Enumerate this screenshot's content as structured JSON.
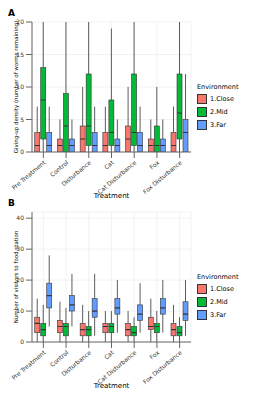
{
  "chart_data": [
    {
      "type": "boxplot",
      "label": "A",
      "x_label": "Treatment",
      "y_label": "Giving-up density (number of worms remaining)",
      "categories": [
        "Pre Treatment",
        "Control",
        "Disturbance",
        "Cat",
        "Cat Disturbance",
        "Fox",
        "Fox Disturbance"
      ],
      "ylim": [
        0,
        20
      ],
      "yticks": [
        0,
        5,
        10,
        15,
        20
      ],
      "grid": true,
      "legend": "right",
      "legend_title": "Environment",
      "series": [
        {
          "name": "1.Close",
          "color": "#F8766D",
          "values": [
            {
              "min": 0,
              "q1": 0,
              "median": 1,
              "q3": 3,
              "max": 7
            },
            {
              "min": 0,
              "q1": 0,
              "median": 1,
              "q3": 2,
              "max": 5
            },
            {
              "min": 0,
              "q1": 0,
              "median": 2,
              "q3": 4,
              "max": 10
            },
            {
              "min": 0,
              "q1": 0,
              "median": 1,
              "q3": 3,
              "max": 7
            },
            {
              "min": 0,
              "q1": 0,
              "median": 2,
              "q3": 4,
              "max": 10
            },
            {
              "min": 0,
              "q1": 0,
              "median": 1,
              "q3": 2,
              "max": 5
            },
            {
              "min": 0,
              "q1": 0,
              "median": 1,
              "q3": 3,
              "max": 7
            }
          ]
        },
        {
          "name": "2.Mid",
          "color": "#00BA38",
          "values": [
            {
              "min": 0,
              "q1": 2,
              "median": 8,
              "q3": 13,
              "max": 20
            },
            {
              "min": 0,
              "q1": 0,
              "median": 4,
              "q3": 9,
              "max": 20
            },
            {
              "min": 0,
              "q1": 1,
              "median": 4,
              "q3": 12,
              "max": 20
            },
            {
              "min": 0,
              "q1": 1,
              "median": 3,
              "q3": 8,
              "max": 19
            },
            {
              "min": 0,
              "q1": 1,
              "median": 3,
              "q3": 12,
              "max": 20
            },
            {
              "min": 0,
              "q1": 0,
              "median": 1,
              "q3": 4,
              "max": 10
            },
            {
              "min": 0,
              "q1": 2,
              "median": 6,
              "q3": 12,
              "max": 20
            }
          ]
        },
        {
          "name": "3.Far",
          "color": "#619CFF",
          "values": [
            {
              "min": 0,
              "q1": 0,
              "median": 1,
              "q3": 3,
              "max": 7
            },
            {
              "min": 0,
              "q1": 0,
              "median": 1,
              "q3": 2,
              "max": 5
            },
            {
              "min": 0,
              "q1": 0,
              "median": 1,
              "q3": 3,
              "max": 7
            },
            {
              "min": 0,
              "q1": 0,
              "median": 1,
              "q3": 2,
              "max": 5
            },
            {
              "min": 0,
              "q1": 0,
              "median": 1,
              "q3": 3,
              "max": 7
            },
            {
              "min": 0,
              "q1": 0,
              "median": 1,
              "q3": 2,
              "max": 5
            },
            {
              "min": 0,
              "q1": 0,
              "median": 3,
              "q3": 5,
              "max": 12
            }
          ]
        }
      ]
    },
    {
      "type": "boxplot",
      "label": "B",
      "x_label": "Treatment",
      "y_label": "Number of visitors to food station",
      "categories": [
        "Pre Treatment",
        "Control",
        "Disturbance",
        "Cat",
        "Cat Disturbance",
        "Fox",
        "Fox Disturbance"
      ],
      "ylim": [
        0,
        42
      ],
      "yticks": [
        0,
        10,
        20,
        30,
        40
      ],
      "grid": true,
      "legend": "right",
      "legend_title": "Environment",
      "series": [
        {
          "name": "1.Close",
          "color": "#F8766D",
          "values": [
            {
              "min": 0,
              "q1": 3,
              "median": 6,
              "q3": 8,
              "max": 14
            },
            {
              "min": 0,
              "q1": 3,
              "median": 5,
              "q3": 7,
              "max": 13
            },
            {
              "min": 0,
              "q1": 2,
              "median": 4,
              "q3": 6,
              "max": 12
            },
            {
              "min": 0,
              "q1": 3,
              "median": 5,
              "q3": 6,
              "max": 10
            },
            {
              "min": 0,
              "q1": 2,
              "median": 4,
              "q3": 6,
              "max": 10
            },
            {
              "min": 0,
              "q1": 4,
              "median": 5,
              "q3": 8,
              "max": 14
            },
            {
              "min": 0,
              "q1": 2,
              "median": 4,
              "q3": 6,
              "max": 12
            }
          ]
        },
        {
          "name": "2.Mid",
          "color": "#00BA38",
          "values": [
            {
              "min": 0,
              "q1": 2,
              "median": 4,
              "q3": 6,
              "max": 12
            },
            {
              "min": 0,
              "q1": 2,
              "median": 5,
              "q3": 6,
              "max": 11
            },
            {
              "min": 0,
              "q1": 2,
              "median": 4,
              "q3": 5,
              "max": 10
            },
            {
              "min": 0,
              "q1": 3,
              "median": 5,
              "q3": 6,
              "max": 10
            },
            {
              "min": 0,
              "q1": 2,
              "median": 3,
              "q3": 5,
              "max": 8
            },
            {
              "min": 0,
              "q1": 3,
              "median": 5,
              "q3": 6,
              "max": 10
            },
            {
              "min": 0,
              "q1": 2,
              "median": 3,
              "q3": 5,
              "max": 8
            }
          ]
        },
        {
          "name": "3.Far",
          "color": "#619CFF",
          "values": [
            {
              "min": 5,
              "q1": 11,
              "median": 15,
              "q3": 19,
              "max": 28
            },
            {
              "min": 5,
              "q1": 10,
              "median": 12,
              "q3": 15,
              "max": 22
            },
            {
              "min": 2,
              "q1": 8,
              "median": 10,
              "q3": 14,
              "max": 22
            },
            {
              "min": 3,
              "q1": 9,
              "median": 11,
              "q3": 14,
              "max": 20
            },
            {
              "min": 3,
              "q1": 7,
              "median": 9,
              "q3": 12,
              "max": 19
            },
            {
              "min": 3,
              "q1": 9,
              "median": 11,
              "q3": 14,
              "max": 20
            },
            {
              "min": 2,
              "q1": 7,
              "median": 9,
              "q3": 13,
              "max": 20
            }
          ]
        }
      ]
    }
  ]
}
